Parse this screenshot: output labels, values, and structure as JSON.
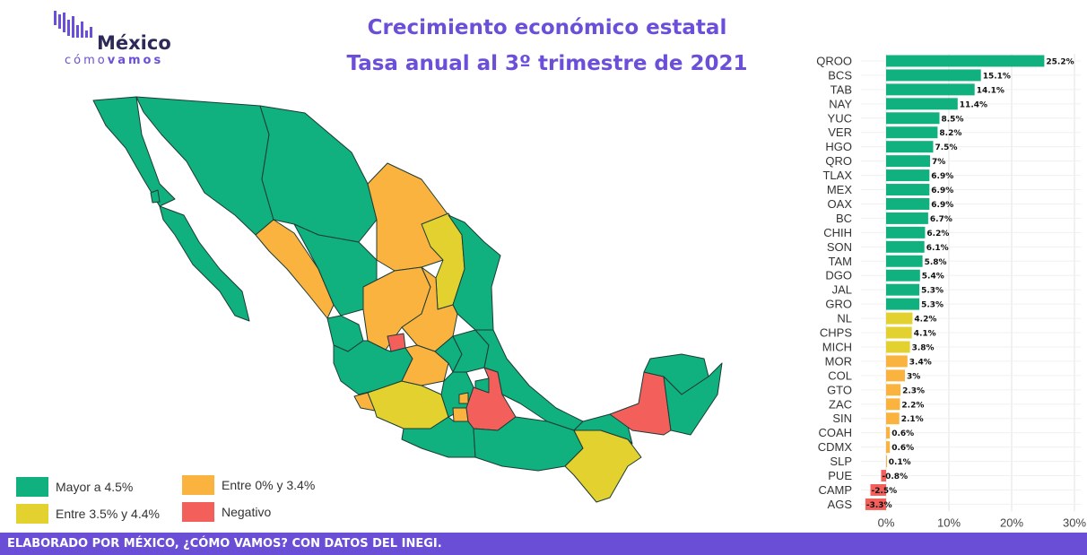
{
  "logo": {
    "word": "México",
    "sub_light": "cómo",
    "sub_bold": "vamos"
  },
  "title_line1": "Crecimiento económico estatal",
  "title_line2": "Tasa anual al 3º trimestre de 2021",
  "legend": [
    {
      "label": "Mayor a 4.5%",
      "color": "#10b07f"
    },
    {
      "label": "Entre 0% y 3.4%",
      "color": "#fbb33f"
    },
    {
      "label": "Entre 3.5% y 4.4%",
      "color": "#e3d12f"
    },
    {
      "label": "Negativo",
      "color": "#f3605c"
    }
  ],
  "footer": "ELABORADO POR MÉXICO, ¿CÓMO VAMOS? CON DATOS DEL INEGI.",
  "chart_data": {
    "type": "bar",
    "orientation": "horizontal",
    "categories": [
      "QROO",
      "BCS",
      "TAB",
      "NAY",
      "YUC",
      "VER",
      "HGO",
      "QRO",
      "TLAX",
      "MEX",
      "OAX",
      "BC",
      "CHIH",
      "SON",
      "TAM",
      "DGO",
      "JAL",
      "GRO",
      "NL",
      "CHPS",
      "MICH",
      "MOR",
      "COL",
      "GTO",
      "ZAC",
      "SIN",
      "COAH",
      "CDMX",
      "SLP",
      "PUE",
      "CAMP",
      "AGS"
    ],
    "values": [
      25.2,
      15.1,
      14.1,
      11.4,
      8.5,
      8.2,
      7.5,
      7,
      6.9,
      6.9,
      6.9,
      6.7,
      6.2,
      6.1,
      5.8,
      5.4,
      5.3,
      5.3,
      4.2,
      4.1,
      3.8,
      3.4,
      3,
      2.3,
      2.2,
      2.1,
      0.6,
      0.6,
      0.1,
      -0.8,
      -2.5,
      -3.3
    ],
    "labels": [
      "25.2%",
      "15.1%",
      "14.1%",
      "11.4%",
      "8.5%",
      "8.2%",
      "7.5%",
      "7%",
      "6.9%",
      "6.9%",
      "6.9%",
      "6.7%",
      "6.2%",
      "6.1%",
      "5.8%",
      "5.4%",
      "5.3%",
      "5.3%",
      "4.2%",
      "4.1%",
      "3.8%",
      "3.4%",
      "3%",
      "2.3%",
      "2.2%",
      "2.1%",
      "0.6%",
      "0.6%",
      "0.1%",
      "-0.8%",
      "-2.5%",
      "-3.3%"
    ],
    "colors": [
      "#10b07f",
      "#10b07f",
      "#10b07f",
      "#10b07f",
      "#10b07f",
      "#10b07f",
      "#10b07f",
      "#10b07f",
      "#10b07f",
      "#10b07f",
      "#10b07f",
      "#10b07f",
      "#10b07f",
      "#10b07f",
      "#10b07f",
      "#10b07f",
      "#10b07f",
      "#10b07f",
      "#e3d12f",
      "#e3d12f",
      "#e3d12f",
      "#fbb33f",
      "#fbb33f",
      "#fbb33f",
      "#fbb33f",
      "#fbb33f",
      "#fbb33f",
      "#fbb33f",
      "#fbb33f",
      "#f3605c",
      "#f3605c",
      "#f3605c"
    ],
    "x_ticks": [
      0,
      10,
      20,
      30
    ],
    "x_tick_labels": [
      "0%",
      "10%",
      "20%",
      "30%"
    ],
    "xlim": [
      -4,
      31
    ],
    "grid": true
  },
  "map_colors": {
    "green": "#10b07f",
    "orange": "#fbb33f",
    "yellow": "#e3d12f",
    "red": "#f3605c",
    "border": "#1c3b34"
  }
}
